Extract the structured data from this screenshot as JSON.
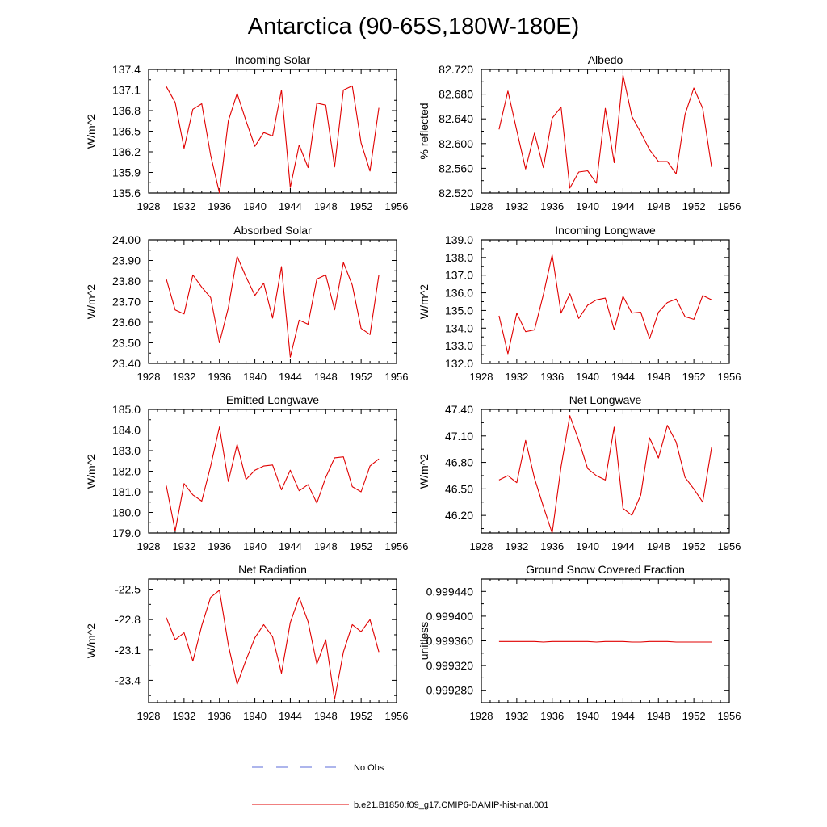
{
  "figure": {
    "title": "Antarctica (90-65S,180W-180E)"
  },
  "legend": {
    "entries": [
      {
        "label": "No Obs",
        "color": "#5b6bd8",
        "dash": true
      },
      {
        "label": "b.e21.B1850.f09_g17.CMIP6-DAMIP-hist-nat.001",
        "color": "#e00000",
        "dash": false
      }
    ]
  },
  "chart_data": [
    {
      "type": "line",
      "title": "Incoming Solar",
      "ylabel": "W/m^2",
      "xlim": [
        1928,
        1956
      ],
      "ylim": [
        135.6,
        137.4
      ],
      "xticks": [
        "1928",
        "1932",
        "1936",
        "1940",
        "1944",
        "1948",
        "1952",
        "1956"
      ],
      "yticks": [
        "135.6",
        "135.9",
        "136.2",
        "136.5",
        "136.8",
        "137.1",
        "137.4"
      ],
      "series": [
        {
          "color": "#e00000",
          "x": [
            1930,
            1931,
            1932,
            1933,
            1934,
            1935,
            1936,
            1937,
            1938,
            1939,
            1940,
            1941,
            1942,
            1943,
            1944,
            1945,
            1946,
            1947,
            1948,
            1949,
            1950,
            1951,
            1952,
            1953,
            1954
          ],
          "y": [
            137.15,
            136.92,
            136.25,
            136.82,
            136.9,
            136.15,
            135.6,
            136.65,
            137.05,
            136.65,
            136.28,
            136.48,
            136.43,
            137.1,
            135.68,
            136.3,
            135.97,
            136.91,
            136.88,
            135.98,
            137.1,
            137.16,
            136.33,
            135.92,
            136.84
          ]
        }
      ]
    },
    {
      "type": "line",
      "title": "Albedo",
      "ylabel": "% reflected",
      "xlim": [
        1928,
        1956
      ],
      "ylim": [
        82.52,
        82.72
      ],
      "xticks": [
        "1928",
        "1932",
        "1936",
        "1940",
        "1944",
        "1948",
        "1952",
        "1956"
      ],
      "yticks": [
        "82.520",
        "82.560",
        "82.600",
        "82.640",
        "82.680",
        "82.720"
      ],
      "series": [
        {
          "color": "#e00000",
          "x": [
            1930,
            1931,
            1932,
            1933,
            1934,
            1935,
            1936,
            1937,
            1938,
            1939,
            1940,
            1941,
            1942,
            1943,
            1944,
            1945,
            1946,
            1947,
            1948,
            1949,
            1950,
            1951,
            1952,
            1953,
            1954
          ],
          "y": [
            82.623,
            82.685,
            82.621,
            82.559,
            82.617,
            82.561,
            82.641,
            82.659,
            82.528,
            82.554,
            82.556,
            82.536,
            82.657,
            82.569,
            82.711,
            82.644,
            82.618,
            82.59,
            82.571,
            82.571,
            82.551,
            82.647,
            82.69,
            82.657,
            82.562
          ]
        }
      ]
    },
    {
      "type": "line",
      "title": "Absorbed Solar",
      "ylabel": "W/m^2",
      "xlim": [
        1928,
        1956
      ],
      "ylim": [
        23.4,
        24.0
      ],
      "xticks": [
        "1928",
        "1932",
        "1936",
        "1940",
        "1944",
        "1948",
        "1952",
        "1956"
      ],
      "yticks": [
        "23.40",
        "23.50",
        "23.60",
        "23.70",
        "23.80",
        "23.90",
        "24.00"
      ],
      "series": [
        {
          "color": "#e00000",
          "x": [
            1930,
            1931,
            1932,
            1933,
            1934,
            1935,
            1936,
            1937,
            1938,
            1939,
            1940,
            1941,
            1942,
            1943,
            1944,
            1945,
            1946,
            1947,
            1948,
            1949,
            1950,
            1951,
            1952,
            1953,
            1954
          ],
          "y": [
            23.81,
            23.66,
            23.64,
            23.83,
            23.77,
            23.72,
            23.5,
            23.67,
            23.92,
            23.82,
            23.73,
            23.79,
            23.62,
            23.87,
            23.43,
            23.61,
            23.59,
            23.81,
            23.83,
            23.66,
            23.89,
            23.78,
            23.57,
            23.54,
            23.83
          ]
        }
      ]
    },
    {
      "type": "line",
      "title": "Incoming Longwave",
      "ylabel": "W/m^2",
      "xlim": [
        1928,
        1956
      ],
      "ylim": [
        132.0,
        139.0
      ],
      "xticks": [
        "1928",
        "1932",
        "1936",
        "1940",
        "1944",
        "1948",
        "1952",
        "1956"
      ],
      "yticks": [
        "132.0",
        "133.0",
        "134.0",
        "135.0",
        "136.0",
        "137.0",
        "138.0",
        "139.0"
      ],
      "series": [
        {
          "color": "#e00000",
          "x": [
            1930,
            1931,
            1932,
            1933,
            1934,
            1935,
            1936,
            1937,
            1938,
            1939,
            1940,
            1941,
            1942,
            1943,
            1944,
            1945,
            1946,
            1947,
            1948,
            1949,
            1950,
            1951,
            1952,
            1953,
            1954
          ],
          "y": [
            134.7,
            132.55,
            134.85,
            133.8,
            133.9,
            135.9,
            138.15,
            134.85,
            135.95,
            134.55,
            135.3,
            135.6,
            135.7,
            133.9,
            135.8,
            134.85,
            134.9,
            133.4,
            134.9,
            135.45,
            135.65,
            134.65,
            134.5,
            135.85,
            135.6
          ]
        }
      ]
    },
    {
      "type": "line",
      "title": "Emitted Longwave",
      "ylabel": "W/m^2",
      "xlim": [
        1928,
        1956
      ],
      "ylim": [
        179.0,
        185.0
      ],
      "xticks": [
        "1928",
        "1932",
        "1936",
        "1940",
        "1944",
        "1948",
        "1952",
        "1956"
      ],
      "yticks": [
        "179.0",
        "180.0",
        "181.0",
        "182.0",
        "183.0",
        "184.0",
        "185.0"
      ],
      "series": [
        {
          "color": "#e00000",
          "x": [
            1930,
            1931,
            1932,
            1933,
            1934,
            1935,
            1936,
            1937,
            1938,
            1939,
            1940,
            1941,
            1942,
            1943,
            1944,
            1945,
            1946,
            1947,
            1948,
            1949,
            1950,
            1951,
            1952,
            1953,
            1954
          ],
          "y": [
            181.3,
            179.1,
            181.4,
            180.85,
            180.55,
            182.25,
            184.15,
            181.5,
            183.3,
            181.6,
            182.05,
            182.25,
            182.3,
            181.1,
            182.05,
            181.05,
            181.35,
            180.45,
            181.7,
            182.65,
            182.7,
            181.25,
            181.0,
            182.25,
            182.6
          ]
        }
      ]
    },
    {
      "type": "line",
      "title": "Net Longwave",
      "ylabel": "W/m^2",
      "xlim": [
        1928,
        1956
      ],
      "ylim": [
        46.0,
        47.4
      ],
      "xticks": [
        "1928",
        "1932",
        "1936",
        "1940",
        "1944",
        "1948",
        "1952",
        "1956"
      ],
      "yticks": [
        "46.20",
        "46.50",
        "46.80",
        "47.10",
        "47.40"
      ],
      "series": [
        {
          "color": "#e00000",
          "x": [
            1930,
            1931,
            1932,
            1933,
            1934,
            1935,
            1936,
            1937,
            1938,
            1939,
            1940,
            1941,
            1942,
            1943,
            1944,
            1945,
            1946,
            1947,
            1948,
            1949,
            1950,
            1951,
            1952,
            1953,
            1954
          ],
          "y": [
            46.6,
            46.65,
            46.57,
            47.05,
            46.62,
            46.3,
            46.0,
            46.75,
            47.33,
            47.05,
            46.73,
            46.65,
            46.6,
            47.2,
            46.28,
            46.2,
            46.43,
            47.08,
            46.85,
            47.22,
            47.03,
            46.63,
            46.5,
            46.35,
            46.97
          ]
        }
      ]
    },
    {
      "type": "line",
      "title": "Net Radiation",
      "ylabel": "W/m^2",
      "xlim": [
        1928,
        1956
      ],
      "ylim": [
        -23.62,
        -22.4
      ],
      "xticks": [
        "1928",
        "1932",
        "1936",
        "1940",
        "1944",
        "1948",
        "1952",
        "1956"
      ],
      "yticks": [
        "-23.4",
        "-23.1",
        "-22.8",
        "-22.5"
      ],
      "series": [
        {
          "color": "#e00000",
          "x": [
            1930,
            1931,
            1932,
            1933,
            1934,
            1935,
            1936,
            1937,
            1938,
            1939,
            1940,
            1941,
            1942,
            1943,
            1944,
            1945,
            1946,
            1947,
            1948,
            1949,
            1950,
            1951,
            1952,
            1953,
            1954
          ],
          "y": [
            -22.78,
            -23.0,
            -22.93,
            -23.21,
            -22.86,
            -22.58,
            -22.51,
            -23.05,
            -23.44,
            -23.2,
            -22.98,
            -22.85,
            -22.97,
            -23.33,
            -22.83,
            -22.58,
            -22.82,
            -23.24,
            -23.0,
            -23.59,
            -23.12,
            -22.85,
            -22.92,
            -22.8,
            -23.12
          ]
        }
      ]
    },
    {
      "type": "line",
      "title": "Ground Snow Covered Fraction",
      "ylabel": "unitless",
      "xlim": [
        1928,
        1956
      ],
      "ylim": [
        0.99926,
        0.99946
      ],
      "xticks": [
        "1928",
        "1932",
        "1936",
        "1940",
        "1944",
        "1948",
        "1952",
        "1956"
      ],
      "yticks": [
        "0.999280",
        "0.999320",
        "0.999360",
        "0.999400",
        "0.999440"
      ],
      "series": [
        {
          "color": "#e00000",
          "x": [
            1930,
            1931,
            1932,
            1933,
            1934,
            1935,
            1936,
            1937,
            1938,
            1939,
            1940,
            1941,
            1942,
            1943,
            1944,
            1945,
            1946,
            1947,
            1948,
            1949,
            1950,
            1951,
            1952,
            1953,
            1954
          ],
          "y": [
            0.999359,
            0.999359,
            0.999359,
            0.999359,
            0.999359,
            0.999358,
            0.999359,
            0.999359,
            0.999359,
            0.999359,
            0.999359,
            0.999358,
            0.999359,
            0.999359,
            0.999359,
            0.999358,
            0.999358,
            0.999359,
            0.999359,
            0.999359,
            0.999358,
            0.999358,
            0.999358,
            0.999358,
            0.999358
          ]
        }
      ]
    }
  ]
}
